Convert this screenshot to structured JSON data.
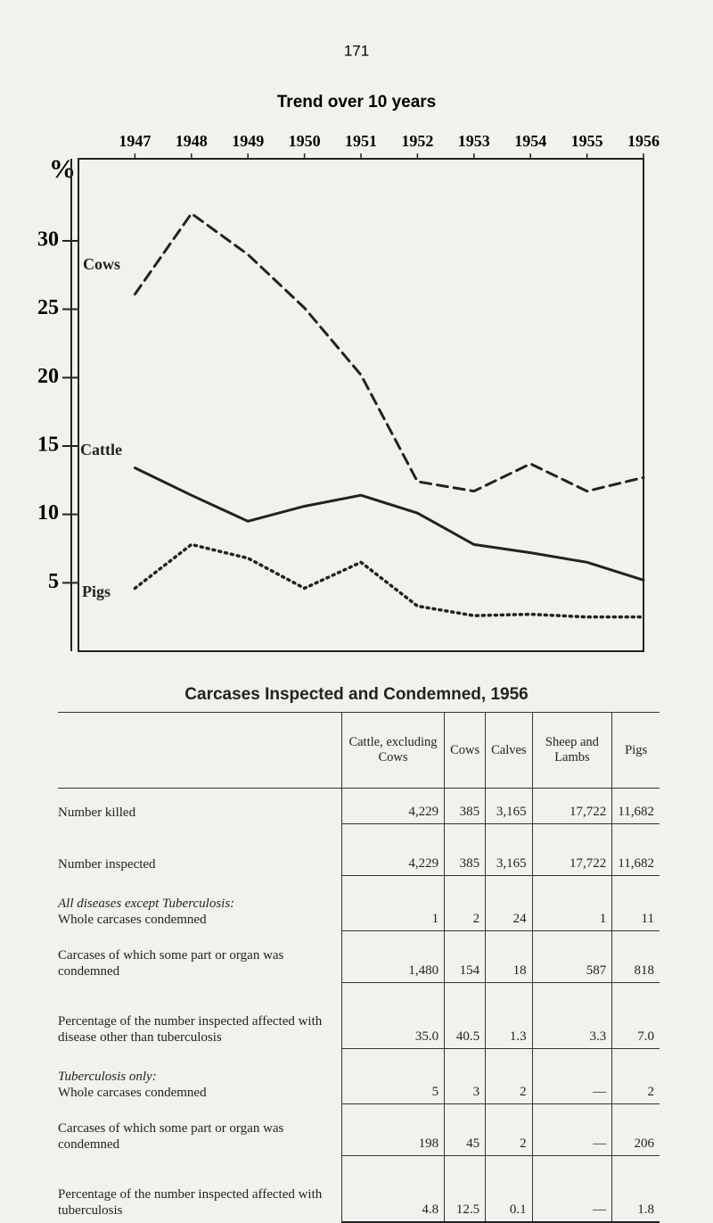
{
  "page_number": "171",
  "chart_data": {
    "type": "line",
    "title": "Trend over 10 years",
    "ylabel": "%",
    "x": [
      1947,
      1948,
      1949,
      1950,
      1951,
      1952,
      1953,
      1954,
      1955,
      1956
    ],
    "xlim": [
      1946,
      1956
    ],
    "xticks": [
      1947,
      1948,
      1949,
      1950,
      1951,
      1952,
      1953,
      1954,
      1955,
      1956
    ],
    "ylim": [
      0,
      36
    ],
    "yticks": [
      5,
      10,
      15,
      20,
      25,
      30
    ],
    "series": [
      {
        "name": "Cows",
        "color": "#222222",
        "line_style": "dashed",
        "values": [
          26.1,
          32.0,
          29.0,
          25.1,
          20.2,
          12.4,
          11.7,
          13.7,
          11.7,
          12.7
        ]
      },
      {
        "name": "Cattle",
        "color": "#222222",
        "line_style": "solid",
        "values": [
          13.4,
          11.4,
          9.5,
          10.6,
          11.4,
          10.1,
          7.8,
          7.2,
          6.5,
          5.2
        ]
      },
      {
        "name": "Pigs",
        "color": "#222222",
        "line_style": "dotted",
        "values": [
          4.6,
          7.8,
          6.8,
          4.6,
          6.5,
          3.3,
          2.6,
          2.7,
          2.5,
          2.5
        ]
      }
    ]
  },
  "table": {
    "title": "Carcases Inspected and Condemned, 1956",
    "columns": [
      "Cattle, excluding Cows",
      "Cows",
      "Calves",
      "Sheep and Lambs",
      "Pigs"
    ],
    "rows": [
      {
        "label": "Number killed",
        "cells": [
          "4,229",
          "385",
          "3,165",
          "17,722",
          "11,682"
        ]
      },
      {
        "label": "Number inspected",
        "cells": [
          "4,229",
          "385",
          "3,165",
          "17,722",
          "11,682"
        ]
      }
    ],
    "sections": [
      {
        "heading": "All diseases except Tuberculosis:",
        "rows": [
          {
            "label": "Whole carcases condemned",
            "cells": [
              "1",
              "2",
              "24",
              "1",
              "11"
            ]
          },
          {
            "label": "Carcases of which some part or organ was condemned",
            "cells": [
              "1,480",
              "154",
              "18",
              "587",
              "818"
            ]
          },
          {
            "label": "Percentage of the number inspected affected with disease other than tuberculosis",
            "cells": [
              "35.0",
              "40.5",
              "1.3",
              "3.3",
              "7.0"
            ]
          }
        ]
      },
      {
        "heading": "Tuberculosis only:",
        "rows": [
          {
            "label": "Whole carcases condemned",
            "cells": [
              "5",
              "3",
              "2",
              "—",
              "2"
            ]
          },
          {
            "label": "Carcases of which some part or organ was condemned",
            "cells": [
              "198",
              "45",
              "2",
              "—",
              "206"
            ]
          },
          {
            "label": "Percentage of the number inspected affected with tuberculosis",
            "cells": [
              "4.8",
              "12.5",
              "0.1",
              "—",
              "1.8"
            ]
          }
        ]
      }
    ]
  }
}
